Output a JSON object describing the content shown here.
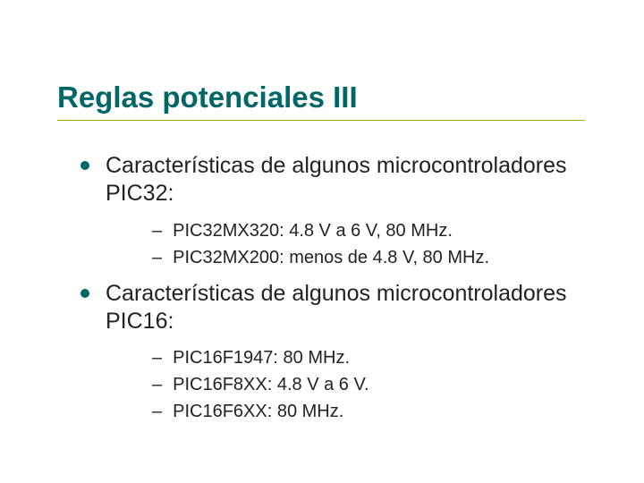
{
  "colors": {
    "title": "#006666",
    "bullet": "#006666",
    "underline": "#a6a600",
    "text": "#222222",
    "background": "#ffffff"
  },
  "typography": {
    "title_fontsize": 33,
    "title_weight": "bold",
    "lvl1_fontsize": 25,
    "lvl2_fontsize": 20,
    "font_family": "Arial"
  },
  "title": "Reglas potenciales III",
  "groups": [
    {
      "text": "Características de algunos microcontroladores PIC32:",
      "items": [
        "PIC32MX320: 4.8 V a 6 V, 80 MHz.",
        "PIC32MX200: menos de 4.8 V, 80 MHz."
      ]
    },
    {
      "text": "Características de algunos microcontroladores PIC16:",
      "items": [
        "PIC16F1947: 80 MHz.",
        "PIC16F8XX: 4.8 V a 6 V.",
        "PIC16F6XX: 80 MHz."
      ]
    }
  ]
}
